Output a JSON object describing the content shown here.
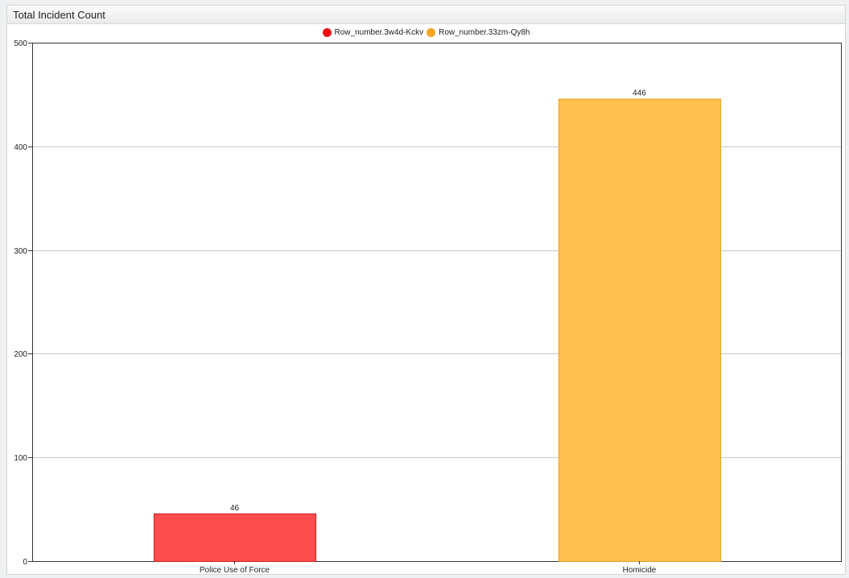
{
  "widget": {
    "title": "Total Incident Count"
  },
  "chart_data": {
    "type": "bar",
    "categories": [
      "Police Use of Force",
      "Homicide"
    ],
    "series": [
      {
        "name": "Row_number.3w4d-Kckv",
        "category": "Police Use of Force",
        "value": 46,
        "color": "#ff4d4d",
        "stroke": "#cc2020",
        "legend_color": "#ee1111"
      },
      {
        "name": "Row_number.33zm-Qy8h",
        "category": "Homicide",
        "value": 446,
        "color": "#ffc04d",
        "stroke": "#e7a020",
        "legend_color": "#f5a623"
      }
    ],
    "yticks": [
      0,
      100,
      200,
      300,
      400,
      500
    ],
    "ylim": [
      0,
      500
    ],
    "grid": true,
    "legend_position": "top-center",
    "data_labels": true
  }
}
